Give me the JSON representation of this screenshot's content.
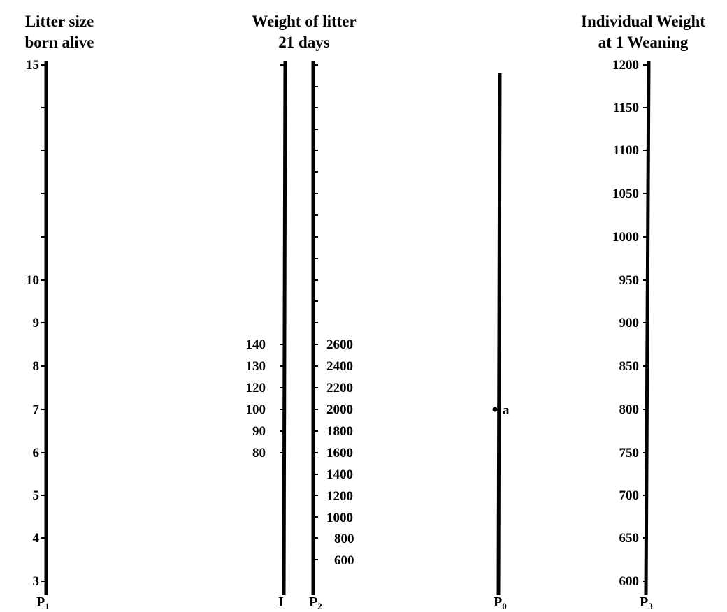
{
  "titles": {
    "p1": [
      "Litter size",
      "born alive"
    ],
    "weight": [
      "Weight of litter",
      "21 days"
    ],
    "p3": [
      "Individual Weight",
      "at 1 Weaning"
    ]
  },
  "scales": {
    "p1": {
      "label": "P",
      "sub": "1",
      "labeled_ticks": [
        "15",
        "10",
        "9",
        "8",
        "7",
        "6",
        "5",
        "4",
        "3"
      ]
    },
    "i": {
      "label": "I",
      "sub": "",
      "labeled_ticks": [
        "140",
        "130",
        "120",
        "100",
        "90",
        "80"
      ]
    },
    "p2": {
      "label": "P",
      "sub": "2",
      "labeled_ticks": [
        "2600",
        "2400",
        "2200",
        "2000",
        "1800",
        "1600",
        "1400",
        "1200",
        "1000",
        "800",
        "600"
      ]
    },
    "p0": {
      "label": "P",
      "sub": "0",
      "point_label": "a"
    },
    "p3": {
      "label": "P",
      "sub": "3",
      "labeled_ticks": [
        "1200",
        "1150",
        "1100",
        "1050",
        "1000",
        "950",
        "900",
        "850",
        "800",
        "750",
        "700",
        "650",
        "600"
      ]
    }
  }
}
